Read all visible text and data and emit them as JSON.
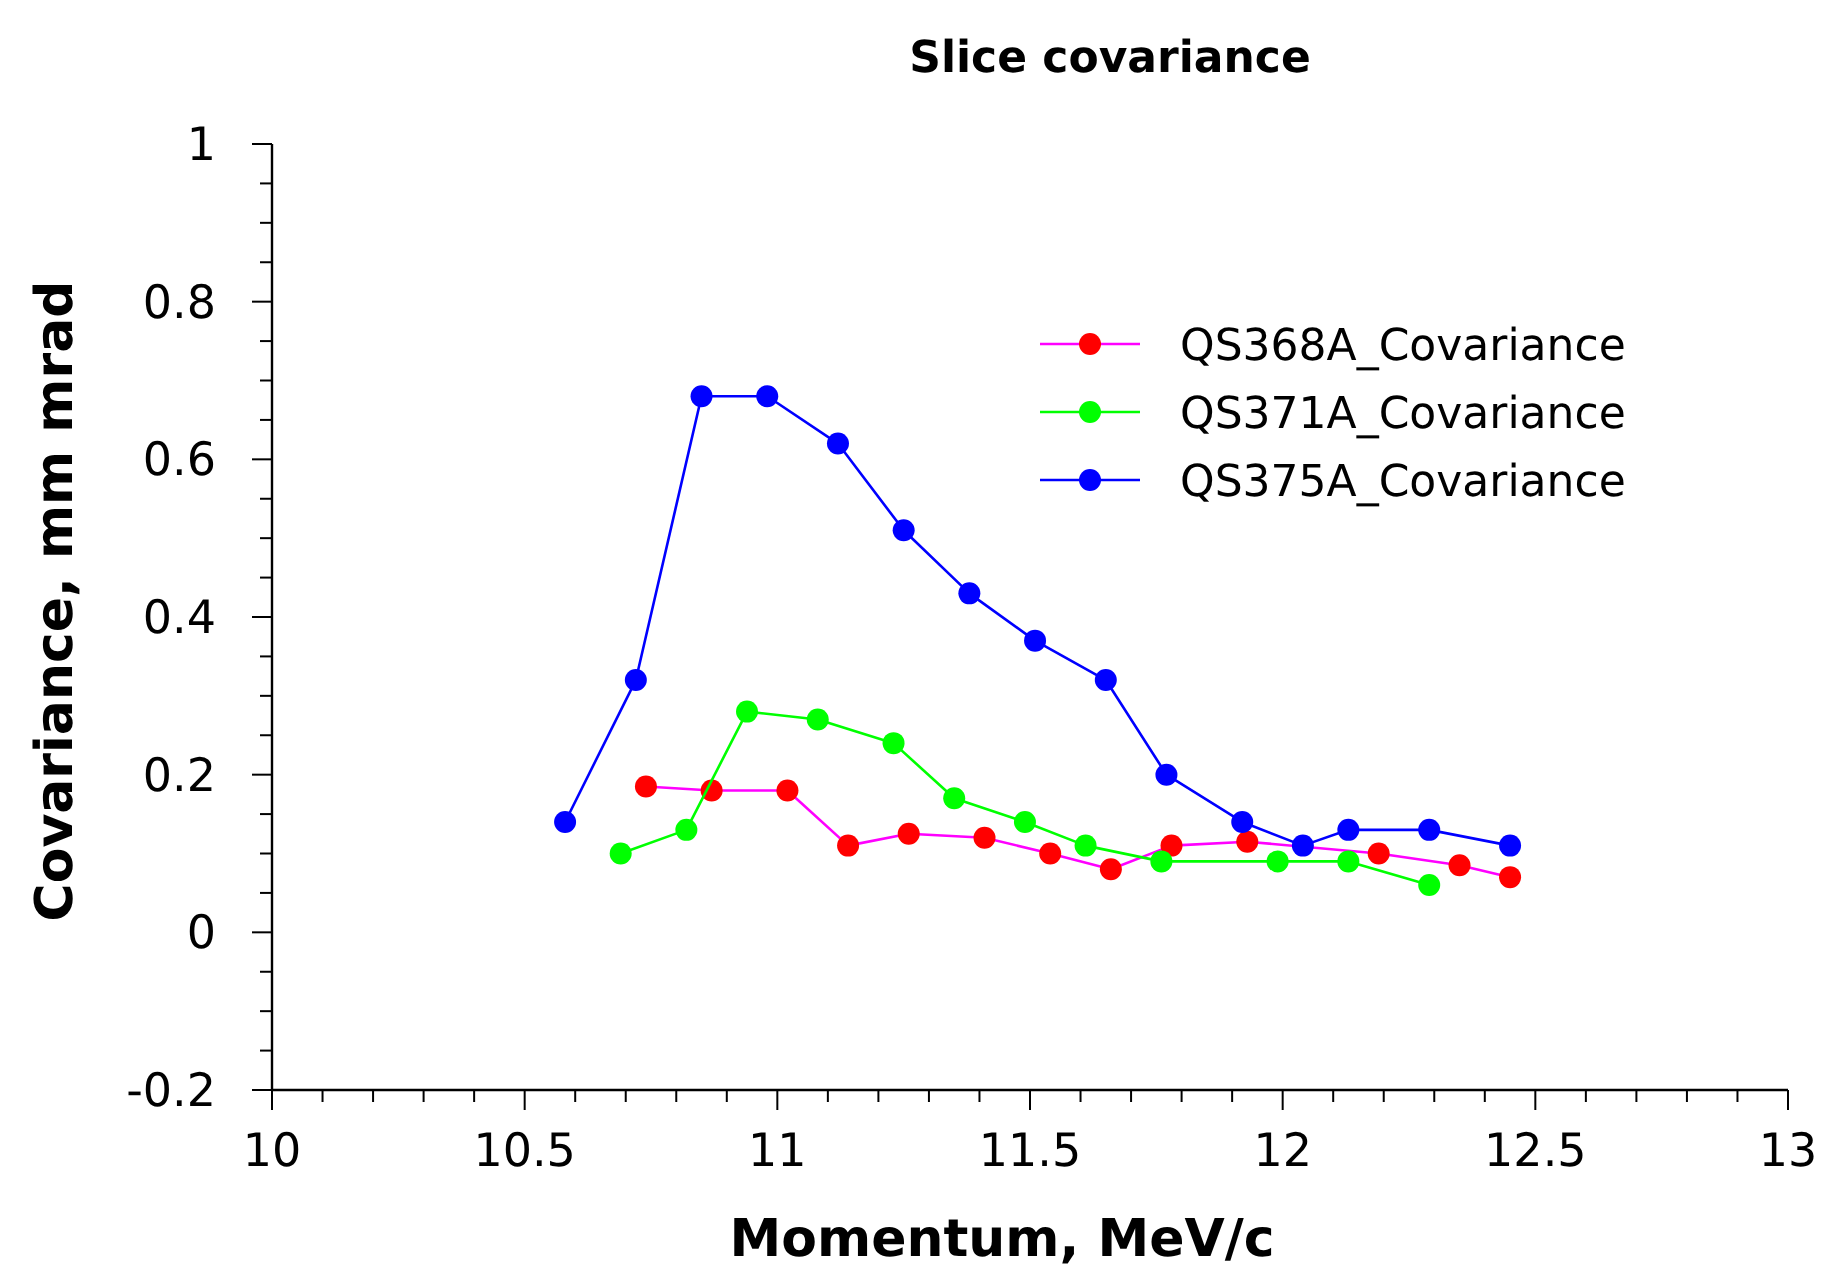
{
  "chart_data": {
    "type": "line",
    "title": "Slice covariance",
    "xlabel": "Momentum, MeV/c",
    "ylabel": "Covariance, mm mrad",
    "xlim": [
      10,
      13
    ],
    "ylim": [
      -0.2,
      1
    ],
    "xticks": [
      10,
      {
        "value": 10.1,
        "label": null
      },
      {
        "value": 10.2,
        "label": null
      },
      {
        "value": 10.3,
        "label": null
      },
      {
        "value": 10.4,
        "label": null
      },
      10.5,
      {
        "value": 10.6,
        "label": null
      },
      {
        "value": 10.7,
        "label": null
      },
      {
        "value": 10.8,
        "label": null
      },
      {
        "value": 10.9,
        "label": null
      },
      11,
      {
        "value": 11.1,
        "label": null
      },
      {
        "value": 11.2,
        "label": null
      },
      {
        "value": 11.3,
        "label": null
      },
      {
        "value": 11.4,
        "label": null
      },
      11.5,
      {
        "value": 11.6,
        "label": null
      },
      {
        "value": 11.7,
        "label": null
      },
      {
        "value": 11.8,
        "label": null
      },
      {
        "value": 11.9,
        "label": null
      },
      12,
      {
        "value": 12.1,
        "label": null
      },
      {
        "value": 12.2,
        "label": null
      },
      {
        "value": 12.3,
        "label": null
      },
      {
        "value": 12.4,
        "label": null
      },
      12.5,
      {
        "value": 12.6,
        "label": null
      },
      {
        "value": 12.7,
        "label": null
      },
      {
        "value": 12.8,
        "label": null
      },
      {
        "value": 12.9,
        "label": null
      },
      13
    ],
    "yticks": [
      -0.2,
      {
        "value": -0.15,
        "label": null
      },
      {
        "value": -0.1,
        "label": null
      },
      {
        "value": -0.05,
        "label": null
      },
      0,
      {
        "value": 0.05,
        "label": null
      },
      {
        "value": 0.1,
        "label": null
      },
      {
        "value": 0.15,
        "label": null
      },
      0.2,
      {
        "value": 0.25,
        "label": null
      },
      {
        "value": 0.3,
        "label": null
      },
      {
        "value": 0.35,
        "label": null
      },
      0.4,
      {
        "value": 0.45,
        "label": null
      },
      {
        "value": 0.5,
        "label": null
      },
      {
        "value": 0.55,
        "label": null
      },
      0.6,
      {
        "value": 0.65,
        "label": null
      },
      {
        "value": 0.7,
        "label": null
      },
      {
        "value": 0.75,
        "label": null
      },
      0.8,
      {
        "value": 0.85,
        "label": null
      },
      {
        "value": 0.9,
        "label": null
      },
      {
        "value": 0.95,
        "label": null
      },
      1
    ],
    "grid": false,
    "legend": "top right",
    "marker": "circle",
    "line_style": "solid",
    "series": [
      {
        "name": "QS368A_Covariance",
        "color": "#ff00ff",
        "colors": [
          "#ff0000",
          "#ff0000",
          "#ff0000",
          "#ff0000",
          "#ff0000",
          "#ff0000",
          "#ff0000",
          "#ff0000",
          "#ff0000",
          "#ff0000",
          null,
          "#ff0000",
          "#ff0000",
          "#ff0000"
        ],
        "x": [
          10.74,
          10.87,
          11.02,
          11.14,
          11.26,
          11.41,
          11.54,
          11.66,
          11.78,
          11.93,
          12.04,
          12.19,
          12.35,
          12.45
        ],
        "values": [
          0.185,
          0.18,
          0.18,
          0.11,
          0.125,
          0.12,
          0.1,
          0.08,
          0.11,
          0.115,
          null,
          0.1,
          0.085,
          0.07
        ]
      },
      {
        "name": "QS371A_Covariance",
        "color": "#00ff00",
        "x": [
          10.69,
          10.82,
          10.94,
          11.08,
          11.23,
          11.35,
          11.49,
          11.61,
          11.76,
          11.99,
          12.13,
          12.29
        ],
        "values": [
          0.1,
          0.13,
          0.28,
          0.27,
          0.24,
          0.17,
          0.14,
          0.11,
          0.09,
          0.09,
          0.09,
          0.06
        ]
      },
      {
        "name": "QS375A_Covariance",
        "color": "#0000ff",
        "x": [
          10.58,
          10.72,
          10.85,
          10.98,
          11.12,
          11.25,
          11.38,
          11.51,
          11.65,
          11.77,
          11.92,
          12.04,
          12.13,
          12.29,
          12.45
        ],
        "values": [
          0.14,
          0.32,
          0.68,
          0.68,
          0.62,
          0.51,
          0.43,
          0.37,
          0.32,
          0.2,
          0.14,
          0.11,
          0.13,
          0.13,
          0.11
        ]
      }
    ]
  }
}
